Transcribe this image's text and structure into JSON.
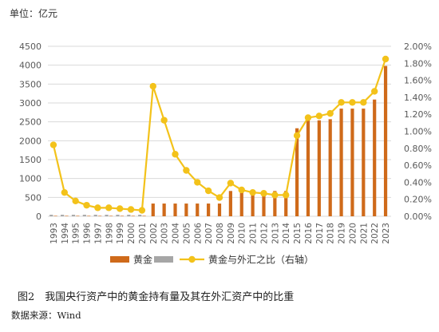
{
  "unit_label": "单位：亿元",
  "caption": "图2　我国央行资产中的黄金持有量及其在外汇资产中的比重",
  "source": "数据来源：Wind",
  "colors": {
    "gold_bar": "#cf6a1a",
    "gray_bar": "#a6a6a6",
    "ratio_line": "#f3c21a",
    "axis_text": "#595959",
    "grid": "#d9d9d9"
  },
  "chart_data": {
    "type": "bar",
    "categories": [
      "1993",
      "1994",
      "1995",
      "1996",
      "1997",
      "1998",
      "1999",
      "2000",
      "2001",
      "2002",
      "2003",
      "2004",
      "2005",
      "2006",
      "2007",
      "2008",
      "2009",
      "2010",
      "2011",
      "2012",
      "2013",
      "2014",
      "2015",
      "2016",
      "2017",
      "2018",
      "2019",
      "2020",
      "2021",
      "2022",
      "2023"
    ],
    "ylim": [
      0,
      4500
    ],
    "yticks": [
      0,
      500,
      1000,
      1500,
      2000,
      2500,
      3000,
      3500,
      4000,
      4500
    ],
    "y2lim": [
      0,
      2.0
    ],
    "y2ticks": [
      0,
      0.2,
      0.4,
      0.6,
      0.8,
      1.0,
      1.2,
      1.4,
      1.6,
      1.8,
      2.0
    ],
    "y2tick_labels": [
      "0.00%",
      "0.20%",
      "0.40%",
      "0.60%",
      "0.80%",
      "1.00%",
      "1.20%",
      "1.40%",
      "1.60%",
      "1.80%",
      "2.00%"
    ],
    "grid": true,
    "legend_position": "bottom",
    "series": [
      {
        "name": "黄金",
        "kind": "bar",
        "axis": "left",
        "color": "#cf6a1a",
        "values": [
          12,
          12,
          12,
          12,
          12,
          12,
          12,
          12,
          12,
          337,
          337,
          337,
          337,
          337,
          337,
          337,
          670,
          670,
          670,
          670,
          670,
          670,
          2330,
          2540,
          2540,
          2570,
          2850,
          2850,
          2850,
          3090,
          3980
        ]
      },
      {
        "name": "",
        "kind": "bar",
        "axis": "left",
        "color": "#a6a6a6",
        "values": [
          40,
          40,
          40,
          40,
          40,
          40,
          40,
          40,
          40,
          0,
          0,
          0,
          0,
          0,
          0,
          0,
          0,
          0,
          0,
          0,
          0,
          0,
          0,
          0,
          0,
          0,
          0,
          0,
          0,
          0,
          0
        ]
      },
      {
        "name": "黄金与外汇之比（右轴）",
        "kind": "line",
        "axis": "right",
        "color": "#f3c21a",
        "values": [
          0.84,
          0.28,
          0.18,
          0.13,
          0.1,
          0.1,
          0.09,
          0.08,
          0.07,
          1.53,
          1.13,
          0.73,
          0.54,
          0.4,
          0.3,
          0.22,
          0.39,
          0.31,
          0.28,
          0.27,
          0.25,
          0.25,
          0.95,
          1.16,
          1.18,
          1.21,
          1.34,
          1.34,
          1.34,
          1.47,
          1.85
        ]
      }
    ]
  }
}
